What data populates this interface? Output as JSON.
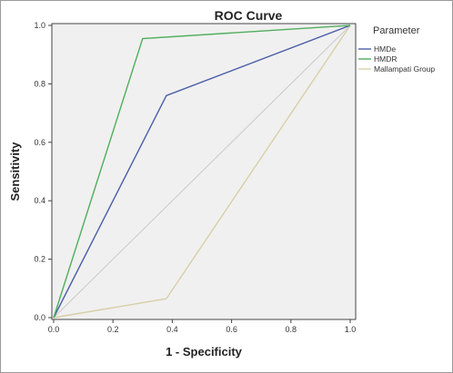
{
  "chart_data": {
    "type": "line",
    "title": "ROC Curve",
    "xlabel": "1 - Specificity",
    "ylabel": "Sensitivity",
    "xlim": [
      0,
      1
    ],
    "ylim": [
      0,
      1
    ],
    "x_ticks": [
      "0.0",
      "0.2",
      "0.4",
      "0.6",
      "0.8",
      "1.0"
    ],
    "y_ticks": [
      "0.0",
      "0.2",
      "0.4",
      "0.6",
      "0.8",
      "1.0"
    ],
    "grid": false,
    "legend": {
      "title": "Parameter",
      "position": "right"
    },
    "series": [
      {
        "name": "HMDe",
        "color": "#4a5ea8",
        "points": [
          [
            0,
            0
          ],
          [
            0.38,
            0.76
          ],
          [
            1,
            1
          ]
        ]
      },
      {
        "name": "HMDR",
        "color": "#4fae5c",
        "points": [
          [
            0,
            0
          ],
          [
            0.3,
            0.955
          ],
          [
            1,
            1
          ]
        ]
      },
      {
        "name": "Mallampati Group",
        "color": "#d8cfa8",
        "points": [
          [
            0,
            0
          ],
          [
            0.38,
            0.065
          ],
          [
            1,
            1
          ]
        ]
      },
      {
        "name": "",
        "color": "#c9c9c9",
        "points": [
          [
            0,
            0
          ],
          [
            1,
            1
          ]
        ]
      }
    ]
  }
}
